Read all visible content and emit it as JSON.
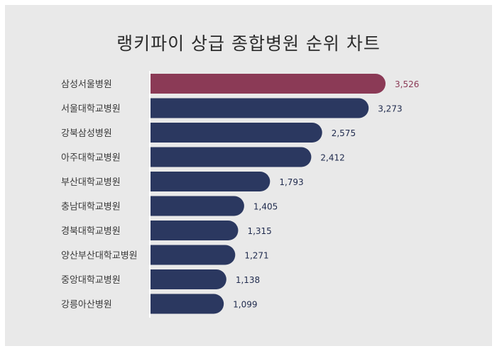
{
  "colors": {
    "background": "#e9e9e9",
    "highlight": "#8b3a56",
    "bar": "#2b3860",
    "axis": "#ffffff",
    "highlight_label": "#8b3a56",
    "label": "#1f2a4d"
  },
  "chart_data": {
    "type": "bar",
    "orientation": "horizontal",
    "title": "랭키파이 상급 종합병원 순위 차트",
    "categories": [
      "삼성서울병원",
      "서울대학교병원",
      "강북삼성병원",
      "아주대학교병원",
      "부산대학교병원",
      "충남대학교병원",
      "경북대학교병원",
      "양산부산대학교병원",
      "중앙대학교병원",
      "강릉아산병원"
    ],
    "values": [
      3526,
      3273,
      2575,
      2412,
      1793,
      1405,
      1315,
      1271,
      1138,
      1099
    ],
    "value_labels": [
      "3,526",
      "3,273",
      "2,575",
      "2,412",
      "1,793",
      "1,405",
      "1,315",
      "1,271",
      "1,138",
      "1,099"
    ],
    "highlight_index": 0,
    "xlim": [
      0,
      3526
    ],
    "grid": false,
    "legend": "none"
  }
}
